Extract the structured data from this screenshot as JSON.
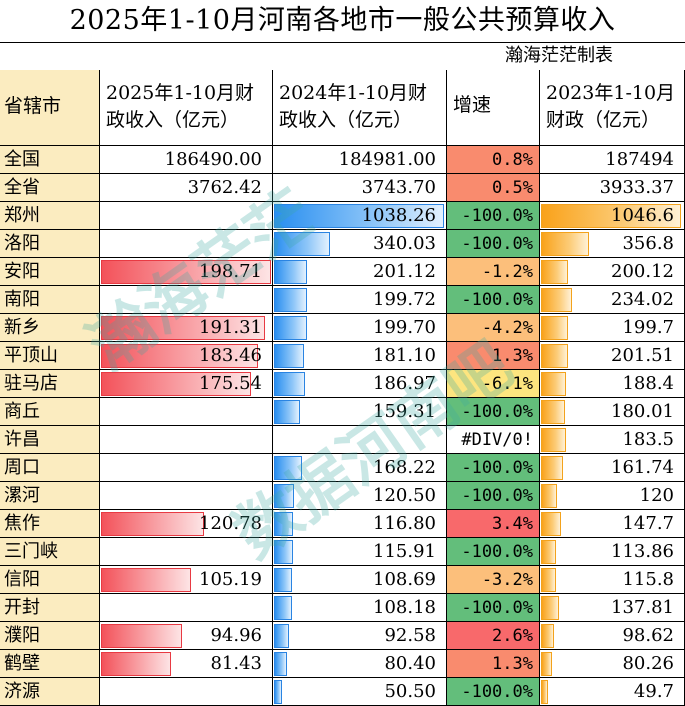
{
  "title": "2025年1-10月河南各地市一般公共预算收入",
  "author": "瀚海茫茫制表",
  "headers": {
    "region": "省辖市",
    "rev2025_line1": "2025年1-10月财",
    "rev2025_line2": "政收入（亿元）",
    "rev2024_line1": "2024年1-10月财",
    "rev2024_line2": "政收入（亿元）",
    "growth": "增速",
    "rev2023_line1": "2023年1-10月",
    "rev2023_line2": "财政（亿元）"
  },
  "colors": {
    "region_bg": "#fbecc0",
    "green": "#63be7b",
    "red": "#f8696b",
    "yellow": "#ffeb84",
    "bar_2025": "#f3525a",
    "bar_2024": "#2a8ff0",
    "bar_2023": "#f9a21a"
  },
  "bar_scale": {
    "rev2025_max": 198.71,
    "rev2024_max": 1038.26,
    "rev2023_max": 1046.6
  },
  "rows": [
    {
      "region": "全国",
      "rev2025": "186490.00",
      "rev2024": "184981.00",
      "growth": "0.8%",
      "growth_value": 0.8,
      "rev2023": "187494",
      "bars": false
    },
    {
      "region": "全省",
      "rev2025": "3762.42",
      "rev2024": "3743.70",
      "growth": "0.5%",
      "growth_value": 0.5,
      "rev2023": "3933.37",
      "bars": false
    },
    {
      "region": "郑州",
      "rev2025": "",
      "rev2024": "1038.26",
      "growth": "-100.0%",
      "growth_value": -100,
      "rev2023": "1046.6",
      "bars": true
    },
    {
      "region": "洛阳",
      "rev2025": "",
      "rev2024": "340.03",
      "growth": "-100.0%",
      "growth_value": -100,
      "rev2023": "356.8",
      "bars": true
    },
    {
      "region": "安阳",
      "rev2025": "198.71",
      "rev2024": "201.12",
      "growth": "-1.2%",
      "growth_value": -1.2,
      "rev2023": "200.12",
      "bars": true
    },
    {
      "region": "南阳",
      "rev2025": "",
      "rev2024": "199.72",
      "growth": "-100.0%",
      "growth_value": -100,
      "rev2023": "234.02",
      "bars": true
    },
    {
      "region": "新乡",
      "rev2025": "191.31",
      "rev2024": "199.70",
      "growth": "-4.2%",
      "growth_value": -4.2,
      "rev2023": "199.7",
      "bars": true
    },
    {
      "region": "平顶山",
      "rev2025": "183.46",
      "rev2024": "181.10",
      "growth": "1.3%",
      "growth_value": 1.3,
      "rev2023": "201.51",
      "bars": true
    },
    {
      "region": "驻马店",
      "rev2025": "175.54",
      "rev2024": "186.97",
      "growth": "-6.1%",
      "growth_value": -6.1,
      "rev2023": "188.4",
      "bars": true
    },
    {
      "region": "商丘",
      "rev2025": "",
      "rev2024": "159.31",
      "growth": "-100.0%",
      "growth_value": -100,
      "rev2023": "180.01",
      "bars": true
    },
    {
      "region": "许昌",
      "rev2025": "",
      "rev2024": "",
      "growth": "#DIV/0!",
      "growth_value": null,
      "rev2023": "183.5",
      "bars": true
    },
    {
      "region": "周口",
      "rev2025": "",
      "rev2024": "168.22",
      "growth": "-100.0%",
      "growth_value": -100,
      "rev2023": "161.74",
      "bars": true
    },
    {
      "region": "漯河",
      "rev2025": "",
      "rev2024": "120.50",
      "growth": "-100.0%",
      "growth_value": -100,
      "rev2023": "120",
      "bars": true
    },
    {
      "region": "焦作",
      "rev2025": "120.78",
      "rev2024": "116.80",
      "growth": "3.4%",
      "growth_value": 3.4,
      "rev2023": "147.7",
      "bars": true
    },
    {
      "region": "三门峡",
      "rev2025": "",
      "rev2024": "115.91",
      "growth": "-100.0%",
      "growth_value": -100,
      "rev2023": "113.86",
      "bars": true
    },
    {
      "region": "信阳",
      "rev2025": "105.19",
      "rev2024": "108.69",
      "growth": "-3.2%",
      "growth_value": -3.2,
      "rev2023": "115.8",
      "bars": true
    },
    {
      "region": "开封",
      "rev2025": "",
      "rev2024": "108.18",
      "growth": "-100.0%",
      "growth_value": -100,
      "rev2023": "137.81",
      "bars": true
    },
    {
      "region": "濮阳",
      "rev2025": "94.96",
      "rev2024": "92.58",
      "growth": "2.6%",
      "growth_value": 2.6,
      "rev2023": "98.62",
      "bars": true
    },
    {
      "region": "鹤壁",
      "rev2025": "81.43",
      "rev2024": "80.40",
      "growth": "1.3%",
      "growth_value": 1.3,
      "rev2023": "80.26",
      "bars": true
    },
    {
      "region": "济源",
      "rev2025": "",
      "rev2024": "50.50",
      "growth": "-100.0%",
      "growth_value": -100,
      "rev2023": "49.7",
      "bars": true
    }
  ],
  "watermark": {
    "line1": "瀚海茫茫",
    "line2": "数据河南吧"
  }
}
